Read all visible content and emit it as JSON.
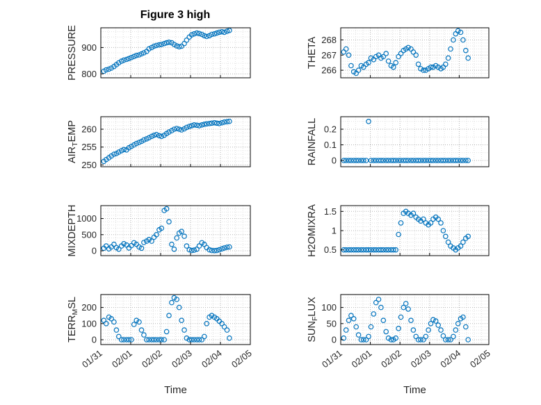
{
  "title": "Figure 3 high",
  "colors": {
    "marker": "#0072BD",
    "axis": "#000000",
    "grid_major": "#b0b0b0",
    "grid_minor": "#e0e0e0",
    "text": "#262626"
  },
  "xaxis": {
    "label": "Time",
    "ticks": [
      "01/31",
      "02/01",
      "02/02",
      "02/03",
      "02/04",
      "02/05"
    ],
    "tick_values": [
      0,
      1,
      2,
      3,
      4,
      5
    ],
    "lim": [
      0,
      5
    ],
    "minor_step": 0.25
  },
  "chart_data": {
    "type": "scatter",
    "x_unit": "days since 01/31",
    "time_days": [
      0.1,
      0.18,
      0.27,
      0.35,
      0.44,
      0.52,
      0.6,
      0.69,
      0.77,
      0.86,
      0.94,
      1.02,
      1.11,
      1.19,
      1.28,
      1.36,
      1.44,
      1.53,
      1.61,
      1.7,
      1.78,
      1.86,
      1.95,
      2.03,
      2.12,
      2.2,
      2.28,
      2.37,
      2.45,
      2.54,
      2.62,
      2.7,
      2.79,
      2.87,
      2.96,
      3.04,
      3.12,
      3.21,
      3.29,
      3.38,
      3.46,
      3.54,
      3.63,
      3.71,
      3.8,
      3.88,
      3.96,
      4.05,
      4.13,
      4.22,
      4.3
    ],
    "subplots": [
      {
        "name": "pressure",
        "ylabel_segments": [
          {
            "text": "PRESSURE",
            "sub": false
          }
        ],
        "yticks": [
          800,
          900
        ],
        "yminor_step": 20,
        "ylim": [
          785,
          975
        ],
        "values": [
          810,
          815,
          818,
          822,
          828,
          835,
          842,
          848,
          852,
          855,
          858,
          862,
          866,
          870,
          872,
          876,
          880,
          885,
          895,
          900,
          905,
          908,
          910,
          912,
          915,
          918,
          920,
          918,
          912,
          906,
          903,
          905,
          915,
          928,
          940,
          948,
          952,
          955,
          953,
          950,
          945,
          942,
          945,
          950,
          952,
          955,
          958,
          960,
          958,
          962,
          965
        ]
      },
      {
        "name": "theta",
        "ylabel_segments": [
          {
            "text": "THETA",
            "sub": false
          }
        ],
        "yticks": [
          266,
          267,
          268
        ],
        "yminor_step": 0.2,
        "ylim": [
          265.5,
          268.8
        ],
        "values": [
          267.2,
          267.4,
          267.0,
          266.3,
          265.9,
          265.8,
          266.0,
          266.3,
          266.2,
          266.4,
          266.5,
          266.8,
          266.7,
          266.9,
          267.0,
          266.8,
          266.9,
          267.1,
          266.6,
          266.3,
          266.2,
          266.5,
          266.9,
          267.1,
          267.3,
          267.4,
          267.5,
          267.4,
          267.2,
          267.0,
          266.4,
          266.1,
          266.0,
          266.0,
          266.1,
          266.2,
          266.2,
          266.3,
          266.2,
          266.1,
          266.2,
          266.4,
          266.8,
          267.4,
          268.0,
          268.4,
          268.6,
          268.5,
          268.0,
          267.3,
          266.8
        ]
      },
      {
        "name": "air_temp",
        "ylabel_segments": [
          {
            "text": "AIR",
            "sub": false
          },
          {
            "text": "T",
            "sub": true
          },
          {
            "text": "EMP",
            "sub": false
          }
        ],
        "yticks": [
          250,
          255,
          260
        ],
        "yminor_step": 1,
        "ylim": [
          249.5,
          263.5
        ],
        "values": [
          251,
          251.5,
          252,
          252.5,
          253,
          253.2,
          253.6,
          254,
          254.3,
          254.2,
          254.8,
          255.2,
          255.6,
          256,
          256.3,
          256.6,
          257,
          257.3,
          257.6,
          258,
          258.3,
          258.5,
          258.2,
          258.0,
          258.3,
          258.8,
          259.2,
          259.6,
          260,
          260.2,
          260.0,
          259.8,
          260.1,
          260.5,
          260.8,
          261,
          261.2,
          261.1,
          261.0,
          261.2,
          261.4,
          261.5,
          261.6,
          261.7,
          261.8,
          261.7,
          261.6,
          261.8,
          262.0,
          262.1,
          262.2
        ]
      },
      {
        "name": "rainfall",
        "ylabel_segments": [
          {
            "text": "RAINFALL",
            "sub": false
          }
        ],
        "yticks": [
          0,
          0.1,
          0.2
        ],
        "yminor_step": 0.05,
        "ylim": [
          -0.04,
          0.28
        ],
        "values": [
          0,
          0,
          0,
          0,
          0,
          0,
          0,
          0,
          0,
          0,
          0.25,
          0,
          0,
          0,
          0,
          0,
          0,
          0,
          0,
          0,
          0,
          0,
          0,
          0,
          0,
          0,
          0,
          0,
          0,
          0,
          0,
          0,
          0,
          0,
          0,
          0,
          0,
          0,
          0,
          0,
          0,
          0,
          0,
          0,
          0,
          0,
          0,
          0,
          0,
          0,
          0
        ]
      },
      {
        "name": "mixdepth",
        "ylabel_segments": [
          {
            "text": "MIXDEPTH",
            "sub": false
          }
        ],
        "yticks": [
          0,
          500,
          1000
        ],
        "yminor_step": 100,
        "ylim": [
          -150,
          1400
        ],
        "values": [
          80,
          150,
          60,
          120,
          200,
          100,
          50,
          150,
          220,
          180,
          90,
          160,
          250,
          200,
          120,
          80,
          260,
          300,
          350,
          300,
          420,
          500,
          650,
          700,
          1250,
          1300,
          900,
          200,
          50,
          400,
          550,
          600,
          450,
          150,
          30,
          10,
          20,
          50,
          150,
          250,
          200,
          100,
          30,
          10,
          5,
          10,
          30,
          60,
          90,
          110,
          120
        ]
      },
      {
        "name": "h2omixra",
        "ylabel_segments": [
          {
            "text": "H2OMIXRA",
            "sub": false
          }
        ],
        "yticks": [
          0.5,
          1,
          1.5
        ],
        "yminor_step": 0.1,
        "ylim": [
          0.35,
          1.65
        ],
        "values": [
          0.5,
          0.5,
          0.5,
          0.5,
          0.5,
          0.5,
          0.5,
          0.5,
          0.5,
          0.5,
          0.5,
          0.5,
          0.5,
          0.5,
          0.5,
          0.5,
          0.5,
          0.5,
          0.5,
          0.5,
          0.5,
          0.5,
          0.9,
          1.2,
          1.45,
          1.5,
          1.45,
          1.4,
          1.45,
          1.35,
          1.3,
          1.25,
          1.3,
          1.2,
          1.15,
          1.2,
          1.3,
          1.35,
          1.3,
          1.2,
          1.0,
          0.85,
          0.7,
          0.6,
          0.55,
          0.5,
          0.55,
          0.6,
          0.7,
          0.8,
          0.85
        ]
      },
      {
        "name": "terr_msl",
        "ylabel_segments": [
          {
            "text": "TERR",
            "sub": false
          },
          {
            "text": "M",
            "sub": true
          },
          {
            "text": "SL",
            "sub": false
          }
        ],
        "yticks": [
          0,
          100,
          200
        ],
        "yminor_step": 20,
        "ylim": [
          -30,
          280
        ],
        "values": [
          120,
          100,
          140,
          130,
          110,
          60,
          20,
          0,
          0,
          0,
          0,
          0,
          95,
          120,
          110,
          60,
          30,
          0,
          0,
          0,
          0,
          0,
          0,
          0,
          0,
          50,
          150,
          230,
          260,
          250,
          200,
          120,
          60,
          10,
          0,
          0,
          0,
          0,
          0,
          0,
          20,
          100,
          140,
          150,
          140,
          130,
          115,
          100,
          80,
          60,
          10
        ]
      },
      {
        "name": "sun_flux",
        "ylabel_segments": [
          {
            "text": "SUN",
            "sub": false
          },
          {
            "text": "F",
            "sub": true
          },
          {
            "text": "LUX",
            "sub": false
          }
        ],
        "yticks": [
          0,
          50,
          100
        ],
        "yminor_step": 10,
        "ylim": [
          -15,
          140
        ],
        "values": [
          5,
          30,
          60,
          75,
          65,
          40,
          15,
          0,
          0,
          0,
          10,
          40,
          80,
          115,
          125,
          100,
          60,
          25,
          5,
          0,
          0,
          5,
          35,
          70,
          100,
          112,
          95,
          60,
          30,
          10,
          0,
          0,
          0,
          10,
          30,
          50,
          62,
          58,
          45,
          30,
          12,
          0,
          0,
          0,
          10,
          30,
          50,
          65,
          70,
          40,
          0
        ]
      }
    ]
  }
}
